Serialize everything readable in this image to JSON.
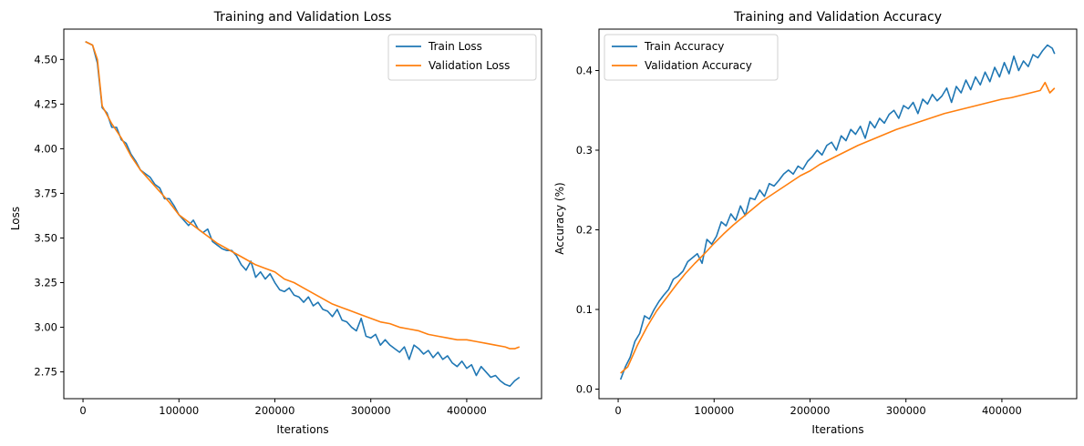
{
  "colors": {
    "train": "#1f77b4",
    "validation": "#ff7f0e"
  },
  "chart_data": [
    {
      "type": "line",
      "title": "Training and Validation Loss",
      "xlabel": "Iterations",
      "ylabel": "Loss",
      "xlim": [
        -20000,
        478000
      ],
      "ylim": [
        2.6,
        4.67
      ],
      "xticks": [
        0,
        100000,
        200000,
        300000,
        400000
      ],
      "xtick_labels": [
        "0",
        "100000",
        "200000",
        "300000",
        "400000"
      ],
      "yticks": [
        2.75,
        3.0,
        3.25,
        3.5,
        3.75,
        4.0,
        4.25,
        4.5
      ],
      "ytick_labels": [
        "2.75",
        "3.00",
        "3.25",
        "3.50",
        "3.75",
        "4.00",
        "4.25",
        "4.50"
      ],
      "grid": false,
      "legend_position": "top-right",
      "series": [
        {
          "name": "Train Loss",
          "color": "#1f77b4",
          "x": [
            2500,
            10000,
            15000,
            20000,
            25000,
            30000,
            35000,
            40000,
            45000,
            50000,
            55000,
            60000,
            65000,
            70000,
            75000,
            80000,
            85000,
            90000,
            95000,
            100000,
            105000,
            110000,
            115000,
            120000,
            125000,
            130000,
            135000,
            140000,
            145000,
            150000,
            155000,
            160000,
            165000,
            170000,
            175000,
            180000,
            185000,
            190000,
            195000,
            200000,
            205000,
            210000,
            215000,
            220000,
            225000,
            230000,
            235000,
            240000,
            245000,
            250000,
            255000,
            260000,
            265000,
            270000,
            275000,
            280000,
            285000,
            290000,
            295000,
            300000,
            305000,
            310000,
            315000,
            320000,
            325000,
            330000,
            335000,
            340000,
            345000,
            350000,
            355000,
            360000,
            365000,
            370000,
            375000,
            380000,
            385000,
            390000,
            395000,
            400000,
            405000,
            410000,
            415000,
            420000,
            425000,
            430000,
            435000,
            440000,
            445000,
            450000,
            455000
          ],
          "y": [
            4.6,
            4.58,
            4.48,
            4.23,
            4.2,
            4.12,
            4.12,
            4.05,
            4.03,
            3.97,
            3.93,
            3.88,
            3.86,
            3.84,
            3.8,
            3.78,
            3.72,
            3.72,
            3.68,
            3.63,
            3.6,
            3.57,
            3.6,
            3.55,
            3.53,
            3.55,
            3.48,
            3.46,
            3.44,
            3.43,
            3.43,
            3.4,
            3.35,
            3.32,
            3.37,
            3.28,
            3.31,
            3.27,
            3.3,
            3.25,
            3.21,
            3.2,
            3.22,
            3.18,
            3.17,
            3.14,
            3.17,
            3.12,
            3.14,
            3.1,
            3.09,
            3.06,
            3.1,
            3.04,
            3.03,
            3.0,
            2.98,
            3.05,
            2.95,
            2.94,
            2.96,
            2.9,
            2.93,
            2.9,
            2.88,
            2.86,
            2.89,
            2.82,
            2.9,
            2.88,
            2.85,
            2.87,
            2.83,
            2.86,
            2.82,
            2.84,
            2.8,
            2.78,
            2.81,
            2.77,
            2.79,
            2.73,
            2.78,
            2.75,
            2.72,
            2.73,
            2.7,
            2.68,
            2.67,
            2.7,
            2.72
          ]
        },
        {
          "name": "Validation Loss",
          "color": "#ff7f0e",
          "x": [
            2500,
            10000,
            15000,
            20000,
            30000,
            40000,
            50000,
            60000,
            70000,
            80000,
            90000,
            100000,
            110000,
            120000,
            130000,
            140000,
            150000,
            160000,
            170000,
            180000,
            190000,
            200000,
            210000,
            220000,
            230000,
            240000,
            250000,
            260000,
            270000,
            280000,
            290000,
            300000,
            310000,
            320000,
            330000,
            340000,
            350000,
            360000,
            370000,
            380000,
            390000,
            400000,
            410000,
            420000,
            430000,
            440000,
            445000,
            450000,
            455000
          ],
          "y": [
            4.6,
            4.58,
            4.5,
            4.24,
            4.14,
            4.06,
            3.96,
            3.88,
            3.82,
            3.76,
            3.7,
            3.63,
            3.59,
            3.55,
            3.51,
            3.47,
            3.44,
            3.41,
            3.38,
            3.35,
            3.33,
            3.31,
            3.27,
            3.25,
            3.22,
            3.19,
            3.16,
            3.13,
            3.11,
            3.09,
            3.07,
            3.05,
            3.03,
            3.02,
            3.0,
            2.99,
            2.98,
            2.96,
            2.95,
            2.94,
            2.93,
            2.93,
            2.92,
            2.91,
            2.9,
            2.89,
            2.88,
            2.88,
            2.89
          ]
        }
      ]
    },
    {
      "type": "line",
      "title": "Training and Validation Accuracy",
      "xlabel": "Iterations",
      "ylabel": "Accuracy (%)",
      "xlim": [
        -20000,
        478000
      ],
      "ylim": [
        -0.012,
        0.452
      ],
      "xticks": [
        0,
        100000,
        200000,
        300000,
        400000
      ],
      "xtick_labels": [
        "0",
        "100000",
        "200000",
        "300000",
        "400000"
      ],
      "yticks": [
        0.0,
        0.1,
        0.2,
        0.3,
        0.4
      ],
      "ytick_labels": [
        "0.0",
        "0.1",
        "0.2",
        "0.3",
        "0.4"
      ],
      "grid": false,
      "legend_position": "top-left",
      "series": [
        {
          "name": "Train Accuracy",
          "color": "#1f77b4",
          "x": [
            2500,
            7500,
            12500,
            17500,
            22500,
            27500,
            32500,
            37500,
            42500,
            47500,
            52500,
            57500,
            62500,
            67500,
            72500,
            77500,
            82500,
            87500,
            92500,
            97500,
            102500,
            107500,
            112500,
            117500,
            122500,
            127500,
            132500,
            137500,
            142500,
            147500,
            152500,
            157500,
            162500,
            167500,
            172500,
            177500,
            182500,
            187500,
            192500,
            197500,
            202500,
            207500,
            212500,
            217500,
            222500,
            227500,
            232500,
            237500,
            242500,
            247500,
            252500,
            257500,
            262500,
            267500,
            272500,
            277500,
            282500,
            287500,
            292500,
            297500,
            302500,
            307500,
            312500,
            317500,
            322500,
            327500,
            332500,
            337500,
            342500,
            347500,
            352500,
            357500,
            362500,
            367500,
            372500,
            377500,
            382500,
            387500,
            392500,
            397500,
            402500,
            407500,
            412500,
            417500,
            422500,
            427500,
            432500,
            437500,
            442500,
            447500,
            452500,
            455000
          ],
          "y": [
            0.012,
            0.028,
            0.04,
            0.06,
            0.07,
            0.092,
            0.088,
            0.1,
            0.11,
            0.118,
            0.125,
            0.138,
            0.142,
            0.148,
            0.16,
            0.165,
            0.17,
            0.158,
            0.188,
            0.182,
            0.192,
            0.21,
            0.205,
            0.22,
            0.212,
            0.23,
            0.218,
            0.24,
            0.238,
            0.25,
            0.242,
            0.258,
            0.255,
            0.262,
            0.27,
            0.275,
            0.27,
            0.28,
            0.276,
            0.286,
            0.292,
            0.3,
            0.294,
            0.306,
            0.31,
            0.3,
            0.318,
            0.312,
            0.326,
            0.32,
            0.33,
            0.315,
            0.336,
            0.328,
            0.34,
            0.334,
            0.345,
            0.35,
            0.34,
            0.356,
            0.352,
            0.36,
            0.346,
            0.364,
            0.358,
            0.37,
            0.362,
            0.368,
            0.378,
            0.36,
            0.38,
            0.372,
            0.388,
            0.376,
            0.392,
            0.382,
            0.398,
            0.386,
            0.404,
            0.392,
            0.41,
            0.396,
            0.418,
            0.4,
            0.412,
            0.405,
            0.42,
            0.416,
            0.425,
            0.432,
            0.428,
            0.421
          ]
        },
        {
          "name": "Validation Accuracy",
          "color": "#ff7f0e",
          "x": [
            2500,
            10000,
            20000,
            30000,
            40000,
            50000,
            60000,
            70000,
            80000,
            90000,
            100000,
            110000,
            120000,
            130000,
            140000,
            150000,
            160000,
            170000,
            180000,
            190000,
            200000,
            210000,
            220000,
            230000,
            240000,
            250000,
            260000,
            270000,
            280000,
            290000,
            300000,
            310000,
            320000,
            330000,
            340000,
            350000,
            360000,
            370000,
            380000,
            390000,
            400000,
            410000,
            420000,
            430000,
            440000,
            445000,
            450000,
            455000
          ],
          "y": [
            0.02,
            0.028,
            0.055,
            0.078,
            0.098,
            0.114,
            0.13,
            0.145,
            0.158,
            0.17,
            0.183,
            0.195,
            0.206,
            0.216,
            0.226,
            0.236,
            0.244,
            0.252,
            0.26,
            0.268,
            0.274,
            0.282,
            0.288,
            0.294,
            0.3,
            0.306,
            0.311,
            0.316,
            0.321,
            0.326,
            0.33,
            0.334,
            0.338,
            0.342,
            0.346,
            0.349,
            0.352,
            0.355,
            0.358,
            0.361,
            0.364,
            0.366,
            0.369,
            0.372,
            0.375,
            0.385,
            0.372,
            0.378
          ]
        }
      ]
    }
  ]
}
